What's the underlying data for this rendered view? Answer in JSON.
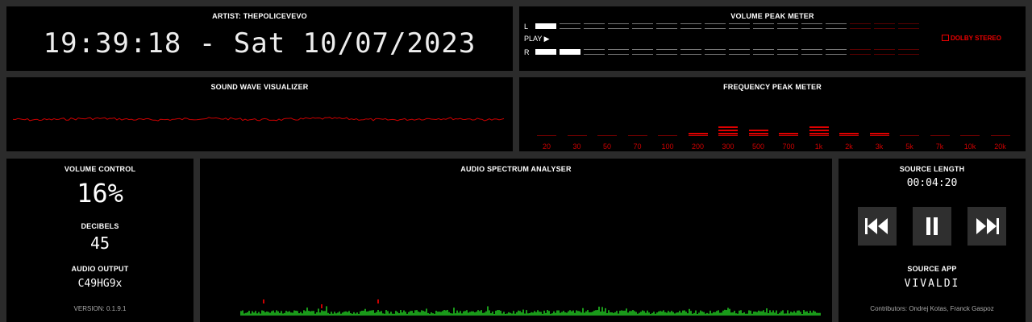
{
  "header": {
    "artist": "ARTIST: THEPOLICEVEVO",
    "clock": "19:39:18 - Sat 10/07/2023"
  },
  "volume_peak": {
    "title": "VOLUME PEAK METER",
    "left_label": "L",
    "right_label": "R",
    "play_label": "PLAY ▶",
    "left_level": 1,
    "right_level": 2,
    "segments_total": 16,
    "red_segments": 3,
    "dolby_label": "DOLBY STEREO"
  },
  "sound_wave": {
    "title": "SOUND WAVE VISUALIZER",
    "color": "#cc0000"
  },
  "frequency_peak": {
    "title": "FREQUENCY PEAK METER",
    "bands": [
      {
        "label": "20",
        "bars": 0
      },
      {
        "label": "30",
        "bars": 0
      },
      {
        "label": "50",
        "bars": 0
      },
      {
        "label": "70",
        "bars": 0
      },
      {
        "label": "100",
        "bars": 0
      },
      {
        "label": "200",
        "bars": 1
      },
      {
        "label": "300",
        "bars": 3
      },
      {
        "label": "500",
        "bars": 2
      },
      {
        "label": "700",
        "bars": 1
      },
      {
        "label": "1k",
        "bars": 3
      },
      {
        "label": "2k",
        "bars": 1
      },
      {
        "label": "3k",
        "bars": 1
      },
      {
        "label": "5k",
        "bars": 0
      },
      {
        "label": "7k",
        "bars": 0
      },
      {
        "label": "10k",
        "bars": 0
      },
      {
        "label": "20k",
        "bars": 0
      }
    ],
    "color": "#e00000"
  },
  "volume_control": {
    "title": "VOLUME CONTROL",
    "value": "16%",
    "decibels_title": "DECIBELS",
    "decibels_value": "45",
    "output_title": "AUDIO OUTPUT",
    "output_value": "C49HG9x",
    "version": "VERSION: 0.1.9.1"
  },
  "spectrum": {
    "title": "AUDIO SPECTRUM ANALYSER",
    "color": "#1a9a1a",
    "peak_color": "#cc0000"
  },
  "source": {
    "length_title": "SOURCE LENGTH",
    "length_value": "00:04:20",
    "app_title": "SOURCE APP",
    "app_value": "VIVALDI",
    "contributors": "Contributors: Ondrej Kotas, Franck Gaspoz"
  },
  "controls": {
    "prev_icon": "skip-previous-icon",
    "pause_icon": "pause-icon",
    "next_icon": "skip-next-icon"
  }
}
